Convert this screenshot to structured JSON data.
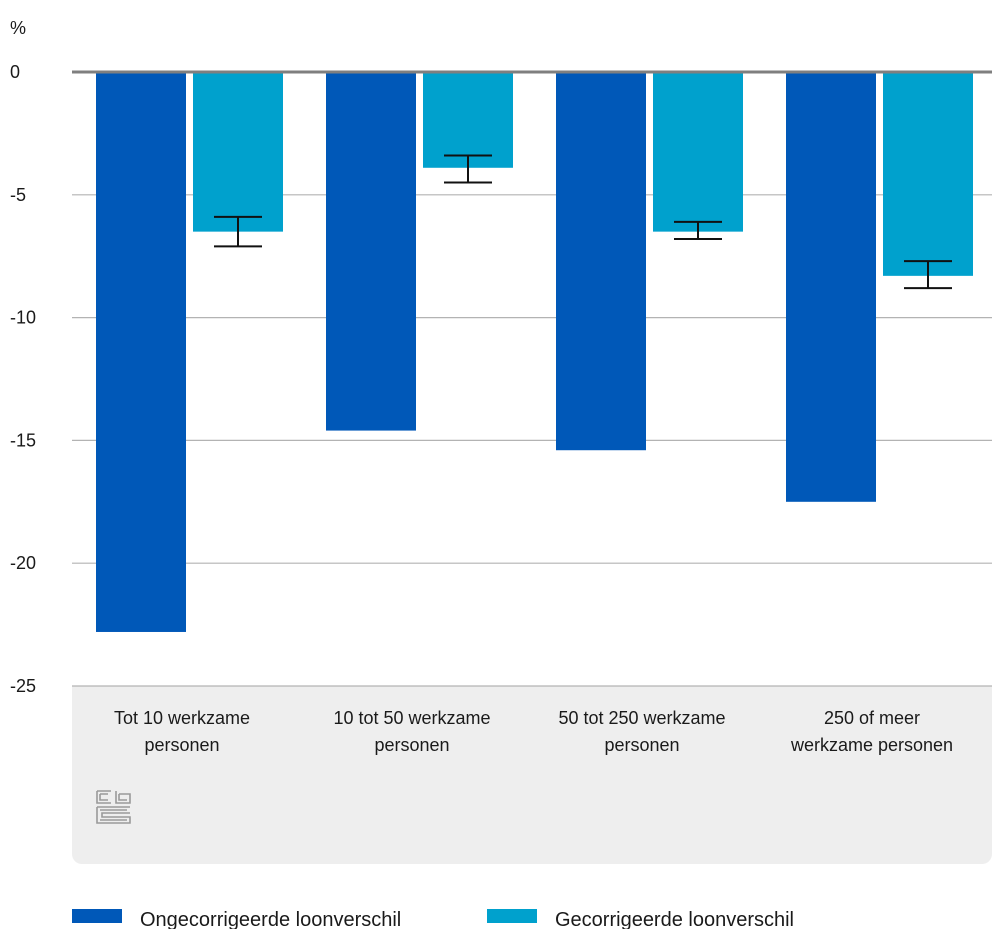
{
  "chart_data": {
    "type": "bar",
    "unit_label": "%",
    "categories": [
      [
        "Tot 10 werkzame",
        "personen"
      ],
      [
        "10 tot 50 werkzame",
        "personen"
      ],
      [
        "50 tot 250 werkzame",
        "personen"
      ],
      [
        "250 of meer",
        "werkzame personen"
      ]
    ],
    "series": [
      {
        "name": "Ongecorrigeerde loonverschil",
        "color": "#0058b8",
        "values": [
          -22.8,
          -14.6,
          -15.4,
          -17.5
        ]
      },
      {
        "name": "Gecorrigeerde loonverschil",
        "color": "#00a1cd",
        "values": [
          -6.5,
          -3.9,
          -6.5,
          -8.3
        ],
        "error_low": [
          -7.1,
          -4.5,
          -6.8,
          -8.8
        ],
        "error_high": [
          -5.9,
          -3.4,
          -6.1,
          -7.7
        ]
      }
    ],
    "ylim": [
      -25,
      0
    ],
    "yticks": [
      0,
      -5,
      -10,
      -15,
      -20,
      -25
    ],
    "grid": true,
    "legend_position": "bottom"
  },
  "logo": "cbs"
}
